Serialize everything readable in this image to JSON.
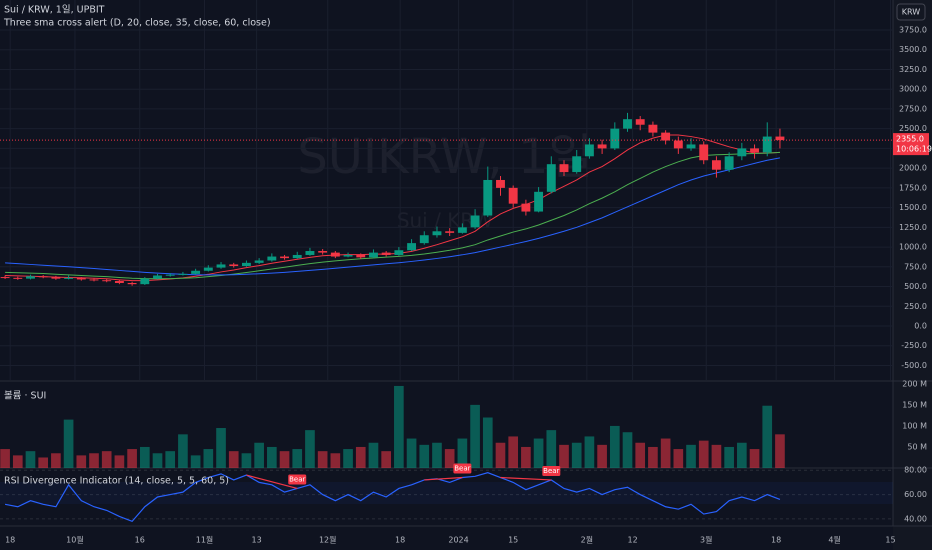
{
  "ui": {
    "currency": "KRW"
  },
  "chart_data": [
    {
      "type": "candlestick",
      "title": "Sui / KRW, 1일, UPBIT",
      "subtitle": "Three sma cross alert (D, 20, close, 35, close, 60, close)",
      "watermark": "SUIKRW, 1일",
      "watermark_subtitle": "Sui / KRW",
      "up_color": "#089981",
      "down_color": "#f23645",
      "open": [
        620,
        610,
        600,
        630,
        620,
        600,
        610,
        590,
        580,
        570,
        545,
        530,
        600,
        640,
        650,
        660,
        700,
        740,
        780,
        760,
        800,
        830,
        880,
        860,
        900,
        950,
        930,
        880,
        900,
        870,
        930,
        900,
        960,
        1050,
        1150,
        1200,
        1180,
        1250,
        1400,
        1850,
        1750,
        1550,
        1450,
        1700,
        2050,
        1950,
        2150,
        2300,
        2250,
        2500,
        2620,
        2550,
        2450,
        2350,
        2250,
        2300,
        2100,
        1980,
        2150,
        2250,
        2200,
        2400
      ],
      "high": [
        640,
        625,
        650,
        645,
        635,
        640,
        620,
        605,
        595,
        585,
        560,
        620,
        660,
        670,
        685,
        725,
        770,
        810,
        800,
        830,
        860,
        920,
        900,
        940,
        990,
        975,
        950,
        930,
        920,
        970,
        950,
        1000,
        1100,
        1200,
        1260,
        1240,
        1300,
        1480,
        2020,
        1900,
        1780,
        1600,
        1760,
        2150,
        2100,
        2230,
        2380,
        2360,
        2580,
        2700,
        2660,
        2590,
        2480,
        2400,
        2380,
        2340,
        2150,
        2200,
        2320,
        2300,
        2580,
        2500
      ],
      "low": [
        595,
        585,
        590,
        605,
        585,
        590,
        575,
        565,
        555,
        530,
        510,
        520,
        590,
        625,
        640,
        650,
        690,
        725,
        740,
        750,
        785,
        815,
        840,
        850,
        890,
        905,
        860,
        870,
        850,
        860,
        880,
        890,
        950,
        1030,
        1120,
        1140,
        1170,
        1230,
        1380,
        1650,
        1500,
        1400,
        1440,
        1680,
        1900,
        1930,
        2120,
        2180,
        2230,
        2460,
        2480,
        2400,
        2300,
        2180,
        2220,
        2050,
        1880,
        1950,
        2100,
        2120,
        2150,
        2250
      ],
      "close": [
        610,
        600,
        630,
        620,
        600,
        610,
        590,
        580,
        570,
        545,
        530,
        600,
        640,
        650,
        660,
        700,
        740,
        780,
        760,
        800,
        830,
        880,
        860,
        900,
        950,
        930,
        880,
        900,
        870,
        930,
        900,
        960,
        1050,
        1150,
        1200,
        1180,
        1250,
        1400,
        1850,
        1750,
        1550,
        1450,
        1700,
        2050,
        1950,
        2150,
        2300,
        2250,
        2500,
        2620,
        2550,
        2450,
        2350,
        2250,
        2300,
        2100,
        1980,
        2150,
        2250,
        2200,
        2400,
        2355
      ],
      "series": [
        {
          "color": "#f23645",
          "values": [
            640,
            635,
            630,
            625,
            620,
            615,
            612,
            605,
            598,
            585,
            575,
            575,
            585,
            595,
            610,
            630,
            655,
            685,
            710,
            740,
            765,
            795,
            820,
            845,
            870,
            890,
            900,
            905,
            905,
            910,
            910,
            920,
            945,
            985,
            1030,
            1080,
            1130,
            1200,
            1320,
            1420,
            1490,
            1540,
            1600,
            1690,
            1770,
            1850,
            1950,
            2020,
            2120,
            2230,
            2320,
            2380,
            2420,
            2420,
            2400,
            2370,
            2320,
            2270,
            2230,
            2190,
            2190,
            2200
          ]
        },
        {
          "color": "#4caf50",
          "values": [
            680,
            675,
            670,
            665,
            655,
            648,
            640,
            632,
            625,
            615,
            605,
            600,
            598,
            600,
            605,
            612,
            625,
            640,
            658,
            678,
            700,
            722,
            745,
            768,
            790,
            810,
            825,
            840,
            852,
            862,
            872,
            882,
            895,
            912,
            935,
            960,
            990,
            1030,
            1090,
            1140,
            1190,
            1230,
            1280,
            1340,
            1400,
            1470,
            1550,
            1620,
            1700,
            1790,
            1870,
            1950,
            2020,
            2080,
            2130,
            2160,
            2170,
            2175,
            2180,
            2185,
            2190,
            2200
          ]
        },
        {
          "color": "#2962ff",
          "values": [
            800,
            790,
            780,
            770,
            760,
            750,
            740,
            728,
            716,
            704,
            692,
            680,
            670,
            662,
            655,
            650,
            648,
            648,
            650,
            655,
            662,
            670,
            680,
            692,
            705,
            718,
            732,
            746,
            760,
            774,
            788,
            802,
            818,
            836,
            856,
            878,
            902,
            930,
            965,
            1000,
            1035,
            1070,
            1110,
            1155,
            1200,
            1250,
            1310,
            1370,
            1440,
            1510,
            1580,
            1650,
            1720,
            1790,
            1850,
            1900,
            1940,
            1980,
            2020,
            2060,
            2100,
            2130
          ]
        }
      ],
      "last_price": {
        "value": 2355,
        "label": "2355.0"
      },
      "countdown": "10:06:19",
      "ylim": [
        -684,
        4130
      ],
      "yticks": [
        {
          "value": -500,
          "label": "-500.0"
        },
        {
          "value": -250,
          "label": "-250.0"
        },
        {
          "value": 0,
          "label": "0.0"
        },
        {
          "value": 250,
          "label": "250.0"
        },
        {
          "value": 500,
          "label": "500.0"
        },
        {
          "value": 750,
          "label": "750.0"
        },
        {
          "value": 1000,
          "label": "1000.0"
        },
        {
          "value": 1250,
          "label": "1250.0"
        },
        {
          "value": 1500,
          "label": "1500.0"
        },
        {
          "value": 1750,
          "label": "1750.0"
        },
        {
          "value": 2000,
          "label": "2000.0"
        },
        {
          "value": 2250,
          "label": "2250.0"
        },
        {
          "value": 2500,
          "label": "2500.0"
        },
        {
          "value": 2750,
          "label": "2750.0"
        },
        {
          "value": 3000,
          "label": "3000.0"
        },
        {
          "value": 3250,
          "label": "3250.0"
        },
        {
          "value": 3500,
          "label": "3500.0"
        },
        {
          "value": 3750,
          "label": "3750.0"
        }
      ],
      "xlim": [
        -0.4,
        69.9
      ],
      "xticks": [
        {
          "value": 0.4,
          "label": "18"
        },
        {
          "value": 5.5,
          "label": "10월"
        },
        {
          "value": 10.6,
          "label": "16"
        },
        {
          "value": 15.7,
          "label": "11월"
        },
        {
          "value": 19.8,
          "label": "13"
        },
        {
          "value": 25.4,
          "label": "12월"
        },
        {
          "value": 31.1,
          "label": "18"
        },
        {
          "value": 35.7,
          "label": "2024"
        },
        {
          "value": 40,
          "label": "15"
        },
        {
          "value": 45.8,
          "label": "2월"
        },
        {
          "value": 49.4,
          "label": "12"
        },
        {
          "value": 55.2,
          "label": "3월"
        },
        {
          "value": 60.7,
          "label": "18"
        },
        {
          "value": 65.3,
          "label": "4월"
        },
        {
          "value": 69.7,
          "label": "15"
        }
      ],
      "grid": true
    },
    {
      "type": "bar",
      "title": "볼륨 · SUI",
      "values": [
        45,
        30,
        40,
        25,
        35,
        115,
        30,
        35,
        40,
        30,
        45,
        50,
        35,
        40,
        80,
        30,
        45,
        95,
        40,
        35,
        60,
        50,
        40,
        45,
        90,
        40,
        35,
        45,
        50,
        60,
        40,
        195,
        70,
        55,
        60,
        45,
        70,
        150,
        120,
        60,
        75,
        50,
        70,
        90,
        55,
        60,
        75,
        55,
        100,
        85,
        60,
        50,
        70,
        45,
        55,
        65,
        55,
        50,
        60,
        45,
        148,
        80
      ],
      "ylim": [
        0,
        202
      ],
      "yticks": [
        {
          "value": 50,
          "label": "50 M"
        },
        {
          "value": 100,
          "label": "100 M"
        },
        {
          "value": 150,
          "label": "150 M"
        },
        {
          "value": 200,
          "label": "200 M"
        }
      ]
    },
    {
      "type": "line",
      "title": "RSI Divergence Indicator (14, close, 5, 5, 60, 5)",
      "color": "#2962ff",
      "values": [
        52,
        50,
        55,
        52,
        50,
        68,
        55,
        50,
        47,
        42,
        38,
        50,
        58,
        60,
        62,
        70,
        74,
        77,
        72,
        76,
        70,
        68,
        62,
        65,
        68,
        60,
        55,
        60,
        55,
        62,
        58,
        65,
        68,
        72,
        73,
        70,
        74,
        75,
        78,
        74,
        70,
        64,
        68,
        72,
        65,
        62,
        65,
        60,
        64,
        66,
        60,
        55,
        50,
        48,
        52,
        44,
        46,
        55,
        58,
        55,
        60,
        56
      ],
      "signals": [
        {
          "label": "Bear",
          "from": 19,
          "at": 23
        },
        {
          "label": "Bear",
          "from": 33,
          "at": 36
        },
        {
          "label": "Bear",
          "from": 39,
          "at": 43
        }
      ],
      "signal_color": "#f23645",
      "ylim": [
        35,
        81
      ],
      "yticks": [
        {
          "value": 40,
          "label": "40.00"
        },
        {
          "value": 60,
          "label": "60.00"
        },
        {
          "value": 80,
          "label": "80.00"
        }
      ]
    }
  ]
}
